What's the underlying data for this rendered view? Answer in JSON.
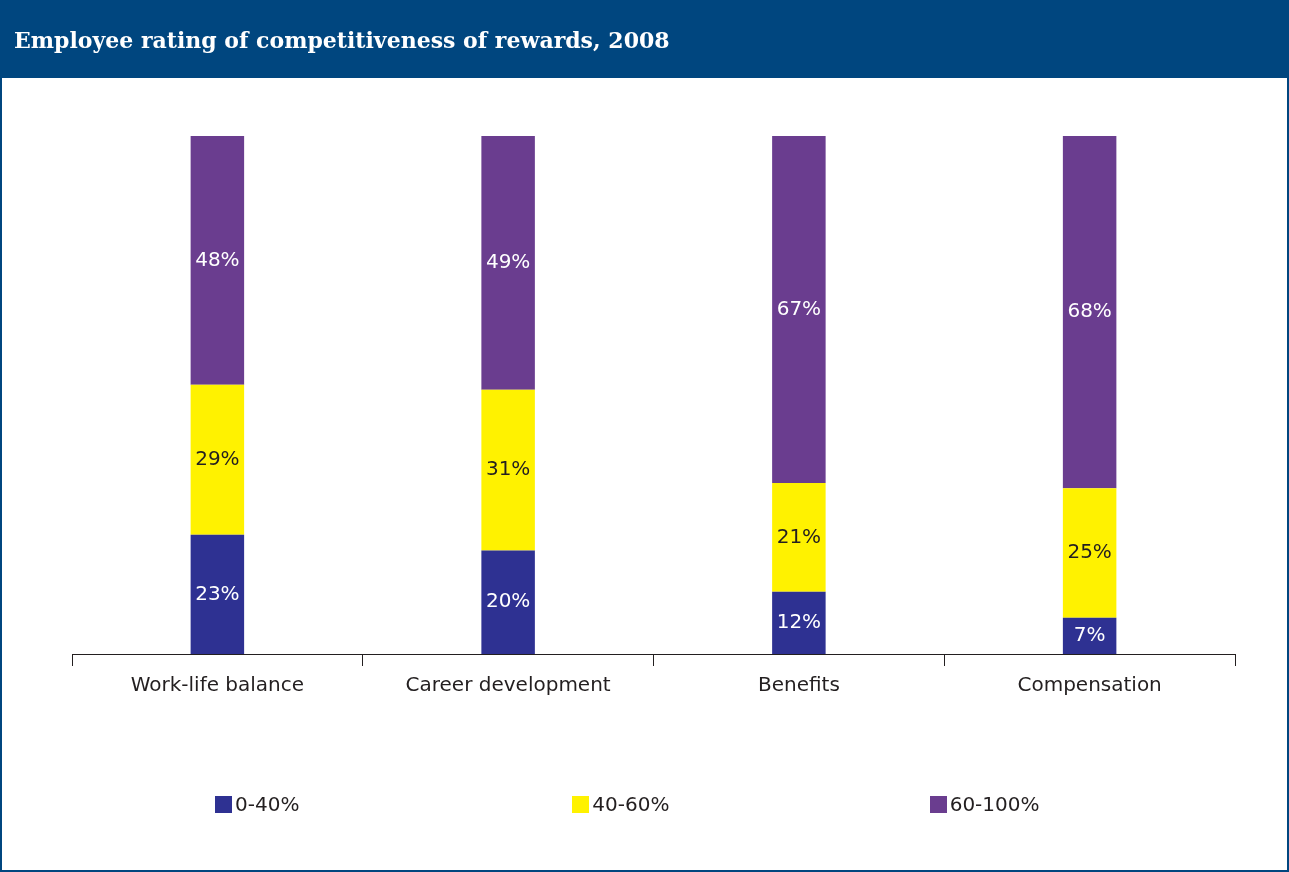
{
  "chart_data": {
    "type": "bar",
    "title": "Employee rating of competitiveness of rewards, 2008",
    "stacked": true,
    "legend": "bottom",
    "grid": false,
    "categories": [
      "Work-life balance",
      "Career development",
      "Benefits",
      "Compensation"
    ],
    "series": [
      {
        "name": "0-40%",
        "color": "#2e3192",
        "values": [
          23,
          20,
          12,
          7
        ],
        "value_labels": [
          "23%",
          "20%",
          "12%",
          "7%"
        ]
      },
      {
        "name": "40-60%",
        "color": "#fff200",
        "values": [
          29,
          31,
          21,
          25
        ],
        "value_labels": [
          "29%",
          "31%",
          "21%",
          "25%"
        ]
      },
      {
        "name": "60-100%",
        "color": "#6a3d8f",
        "values": [
          48,
          49,
          67,
          68
        ],
        "value_labels": [
          "48%",
          "49%",
          "67%",
          "68%"
        ]
      }
    ]
  }
}
